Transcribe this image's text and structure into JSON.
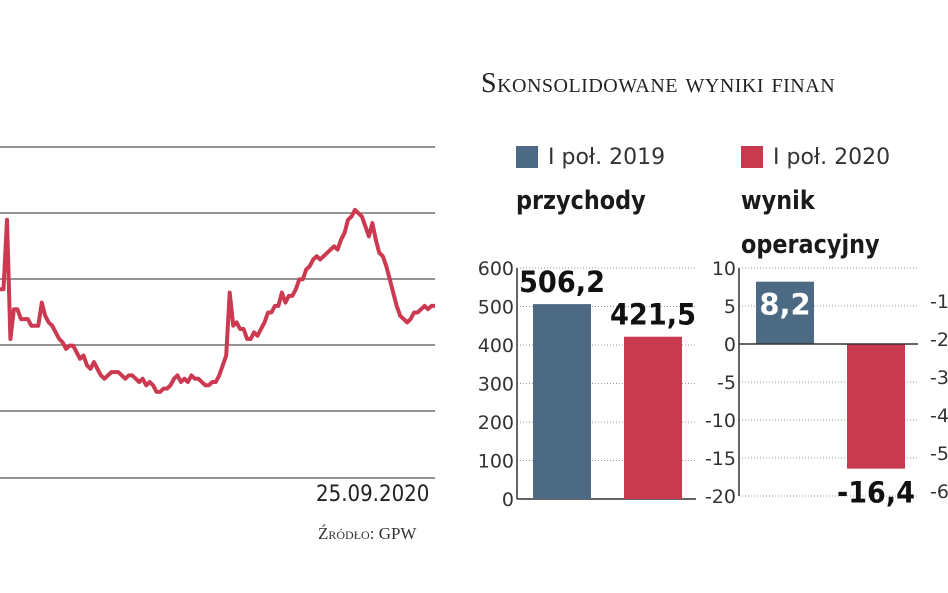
{
  "title": "Skonsolidowane wyniki finan",
  "source": "Źródło: GPW",
  "colors": {
    "series_2019": "#4d6a84",
    "series_2020": "#c93a50",
    "stock_line": "#cc3a52",
    "grid": "#555555"
  },
  "legend": [
    {
      "label": "I poł. 2019",
      "color": "#4d6a84"
    },
    {
      "label": "I poł. 2020",
      "color": "#c93a50"
    }
  ],
  "panels": {
    "revenue_title": "przychody",
    "operating_title_1": "wynik",
    "operating_title_2": "operacyjny"
  },
  "chart_data": [
    {
      "type": "line",
      "title": "",
      "x_end_label": "25.09.2020",
      "ylim": [
        0,
        100
      ],
      "grid": true,
      "values": [
        57,
        57,
        78,
        42,
        51,
        51,
        48,
        48,
        48,
        46,
        46,
        46,
        53,
        49,
        47,
        46,
        44,
        42,
        41,
        39,
        40,
        40,
        38,
        36,
        37,
        34,
        33,
        35,
        33,
        31,
        30,
        31,
        32,
        32,
        32,
        31,
        30,
        31,
        31,
        30,
        29,
        30,
        28,
        29,
        28,
        26,
        26,
        27,
        27,
        28,
        30,
        31,
        29,
        30,
        29,
        31,
        30,
        30,
        29,
        28,
        28,
        29,
        29,
        31,
        34,
        37,
        56,
        46,
        47,
        45,
        45,
        42,
        42,
        44,
        43,
        45,
        47,
        50,
        50,
        52,
        52,
        56,
        53,
        55,
        55,
        57,
        60,
        60,
        63,
        64,
        66,
        67,
        66,
        67,
        68,
        69,
        70,
        69,
        72,
        74,
        78,
        79,
        81,
        80,
        79,
        76,
        73,
        77,
        72,
        68,
        67,
        64,
        60,
        56,
        52,
        49,
        48,
        47,
        48,
        50,
        50,
        51,
        52,
        51,
        52,
        52
      ]
    },
    {
      "type": "bar",
      "title": "przychody",
      "categories": [
        "I poł. 2019",
        "I poł. 2020"
      ],
      "values": [
        506.2,
        421.5
      ],
      "value_labels": [
        "506,2",
        "421,5"
      ],
      "ylim": [
        0,
        600
      ],
      "yticks": [
        0,
        100,
        200,
        300,
        400,
        500,
        600
      ]
    },
    {
      "type": "bar",
      "title": "wynik operacyjny",
      "categories": [
        "I poł. 2019",
        "I poł. 2020"
      ],
      "values": [
        8.2,
        -16.4
      ],
      "value_labels": [
        "8,2",
        "-16,4"
      ],
      "ylim": [
        -20,
        10
      ],
      "yticks": [
        10,
        5,
        0,
        -5,
        -10,
        -15,
        -20
      ],
      "ytick_labels": [
        "10",
        "5",
        "0",
        "-5",
        "-10",
        "-15",
        "-20"
      ]
    },
    {
      "type": "bar",
      "title": "",
      "categories": [],
      "values": [],
      "ytick_labels": [
        "-1",
        "-2",
        "-3",
        "-4",
        "-5",
        "-6"
      ]
    }
  ]
}
